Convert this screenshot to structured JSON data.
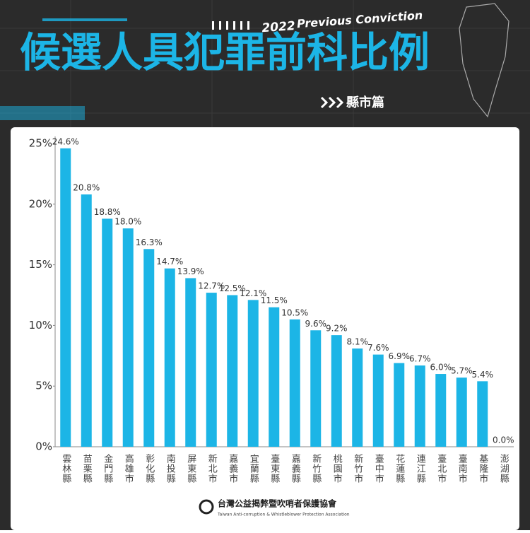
{
  "header": {
    "year": "2022",
    "tag": "Previous Conviction",
    "title": "候選人具犯罪前科比例",
    "subtitle": "縣市篇"
  },
  "chart_data": {
    "type": "bar",
    "color": "#1cb5e6",
    "grid": false,
    "categories": [
      "雲林縣",
      "苗栗縣",
      "金門縣",
      "高雄市",
      "彰化縣",
      "南投縣",
      "屏東縣",
      "新北市",
      "嘉義市",
      "宜蘭縣",
      "臺東縣",
      "嘉義縣",
      "新竹縣",
      "桃園市",
      "新竹市",
      "臺中市",
      "花蓮縣",
      "連江縣",
      "臺北市",
      "臺南市",
      "基隆市",
      "澎湖縣"
    ],
    "values": [
      24.6,
      20.8,
      18.8,
      18.0,
      16.3,
      14.7,
      13.9,
      12.7,
      12.5,
      12.1,
      11.5,
      10.5,
      9.6,
      9.2,
      8.1,
      7.6,
      6.9,
      6.7,
      6.0,
      5.7,
      5.4,
      0.0
    ],
    "value_labels": [
      "24.6%",
      "20.8%",
      "18.8%",
      "18.0%",
      "16.3%",
      "14.7%",
      "13.9%",
      "12.7%",
      "12.5%",
      "12.1%",
      "11.5%",
      "10.5%",
      "9.6%",
      "9.2%",
      "8.1%",
      "7.6%",
      "6.9%",
      "6.7%",
      "6.0%",
      "5.7%",
      "5.4%",
      "0.0%"
    ],
    "ylim": [
      0,
      25
    ],
    "yticks": [
      {
        "value": 0,
        "label": "0%"
      },
      {
        "value": 5,
        "label": "5%"
      },
      {
        "value": 10,
        "label": "10%"
      },
      {
        "value": 15,
        "label": "15%"
      },
      {
        "value": 20,
        "label": "20%"
      },
      {
        "value": 25,
        "label": "25%"
      }
    ]
  },
  "footer": {
    "org": "台灣公益揭弊暨吹哨者保護協會",
    "org_en": "Taiwan Anti-corruption & Whistleblower Protection Association"
  }
}
